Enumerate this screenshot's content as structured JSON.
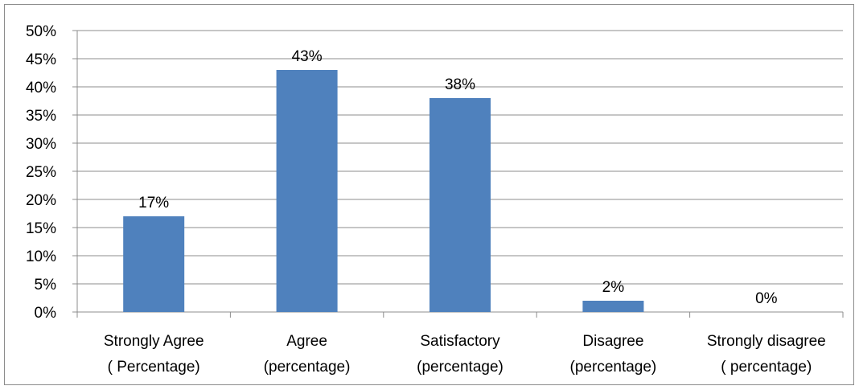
{
  "chart_data": {
    "type": "bar",
    "categories": [
      [
        "Strongly Agree",
        "( Percentage)"
      ],
      [
        "Agree",
        "(percentage)"
      ],
      [
        "Satisfactory",
        "(percentage)"
      ],
      [
        "Disagree",
        "(percentage)"
      ],
      [
        "Strongly disagree",
        "( percentage)"
      ]
    ],
    "values": [
      17,
      43,
      38,
      2,
      0
    ],
    "data_labels": [
      "17%",
      "43%",
      "38%",
      "2%",
      "0%"
    ],
    "ylim": [
      0,
      50
    ],
    "yticks": [
      0,
      5,
      10,
      15,
      20,
      25,
      30,
      35,
      40,
      45,
      50
    ],
    "ytick_labels": [
      "0%",
      "5%",
      "10%",
      "15%",
      "20%",
      "25%",
      "30%",
      "35%",
      "40%",
      "45%",
      "50%"
    ],
    "grid": true,
    "legend": "none",
    "bar_color": "#4f81bd",
    "grid_color": "#8c8c8c"
  }
}
